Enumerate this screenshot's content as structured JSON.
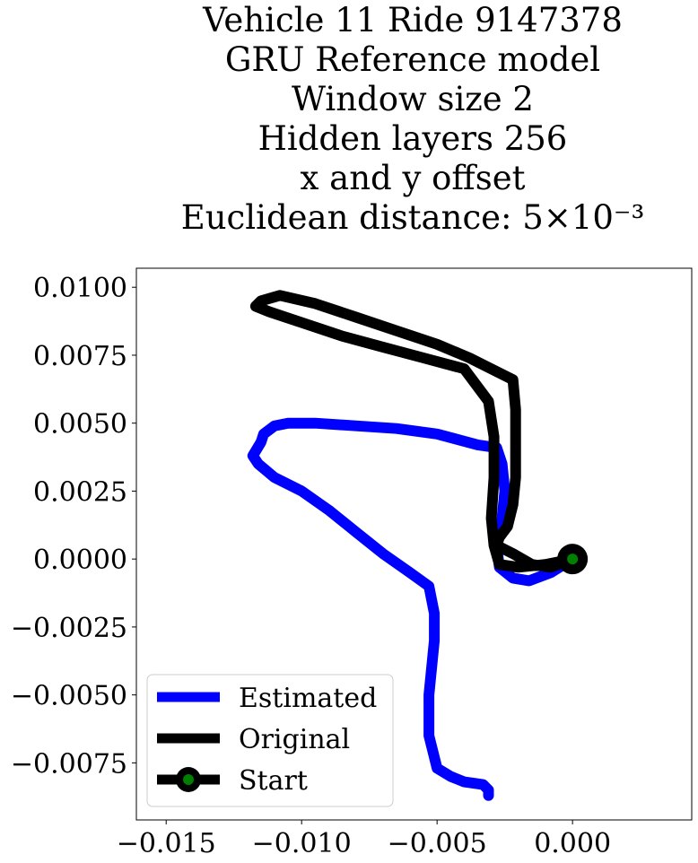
{
  "chart_data": {
    "type": "line",
    "title_lines": [
      "Vehicle 11 Ride 9147378",
      "GRU Reference model",
      "Window size 2",
      "Hidden layers 256",
      "x and y offset",
      "Euclidean distance: 5×10⁻³"
    ],
    "xlabel": "",
    "ylabel": "",
    "xlim": [
      -0.0161,
      0.0044
    ],
    "ylim": [
      -0.0096,
      0.0107
    ],
    "xticks": [
      -0.015,
      -0.01,
      -0.005,
      0.0
    ],
    "xtick_labels": [
      "−0.015",
      "−0.010",
      "−0.005",
      "0.000"
    ],
    "yticks": [
      0.01,
      0.0075,
      0.005,
      0.0025,
      0.0,
      -0.0025,
      -0.005,
      -0.0075
    ],
    "ytick_labels": [
      "0.0100",
      "0.0075",
      "0.0050",
      "0.0025",
      "0.0000",
      "−0.0025",
      "−0.0050",
      "−0.0075"
    ],
    "grid": false,
    "legend_position": "lower-left",
    "series": [
      {
        "name": "Estimated",
        "color": "#0000ff",
        "x": [
          0.0,
          -0.0008,
          -0.0016,
          -0.0022,
          -0.0027,
          -0.0028,
          -0.0026,
          -0.0025,
          -0.0026,
          -0.0028,
          -0.0035,
          -0.005,
          -0.0065,
          -0.008,
          -0.0095,
          -0.0105,
          -0.011,
          -0.0114,
          -0.0115,
          -0.0118,
          -0.0116,
          -0.011,
          -0.01,
          -0.009,
          -0.008,
          -0.007,
          -0.006,
          -0.0053,
          -0.0051,
          -0.0051,
          -0.0052,
          -0.0053,
          -0.0053,
          -0.005,
          -0.0045,
          -0.004,
          -0.0033,
          -0.0031,
          -0.0031
        ],
        "y": [
          0.0,
          -0.0005,
          -0.0008,
          -0.0007,
          -0.0003,
          0.0005,
          0.0015,
          0.0025,
          0.0035,
          0.0041,
          0.0042,
          0.0046,
          0.0048,
          0.0049,
          0.005,
          0.005,
          0.0049,
          0.0046,
          0.0043,
          0.0038,
          0.0035,
          0.003,
          0.0025,
          0.0018,
          0.001,
          0.0002,
          -0.0005,
          -0.001,
          -0.002,
          -0.003,
          -0.004,
          -0.005,
          -0.0065,
          -0.0077,
          -0.008,
          -0.0082,
          -0.0083,
          -0.0085,
          -0.0087
        ]
      },
      {
        "name": "Original",
        "color": "#000000",
        "x": [
          0.0,
          -0.001,
          -0.002,
          -0.0027,
          -0.0029,
          -0.003,
          -0.0029,
          -0.0029,
          -0.0031,
          -0.004,
          -0.0055,
          -0.007,
          -0.0085,
          -0.01,
          -0.0112,
          -0.0117,
          -0.0115,
          -0.0108,
          -0.0095,
          -0.008,
          -0.0065,
          -0.005,
          -0.0038,
          -0.0032,
          -0.0022,
          -0.0021,
          -0.0021,
          -0.0021,
          -0.0022,
          -0.0024,
          -0.0027,
          -0.0028,
          -0.0022,
          -0.0015,
          -0.0008,
          0.0
        ],
        "y": [
          0.0,
          -0.0002,
          -0.0003,
          -0.0002,
          0.0005,
          0.0015,
          0.003,
          0.0045,
          0.0058,
          0.007,
          0.0074,
          0.0078,
          0.0082,
          0.0087,
          0.0091,
          0.0093,
          0.0095,
          0.0097,
          0.0094,
          0.0089,
          0.0084,
          0.0079,
          0.0074,
          0.0071,
          0.0066,
          0.0055,
          0.004,
          0.003,
          0.002,
          0.0012,
          0.0008,
          0.0005,
          0.0002,
          -0.0002,
          -0.0003,
          0.0
        ]
      }
    ],
    "start_marker": {
      "name": "Start",
      "x": 0.0,
      "y": 0.0,
      "edge_color": "#000000",
      "face_color": "#008000"
    }
  }
}
